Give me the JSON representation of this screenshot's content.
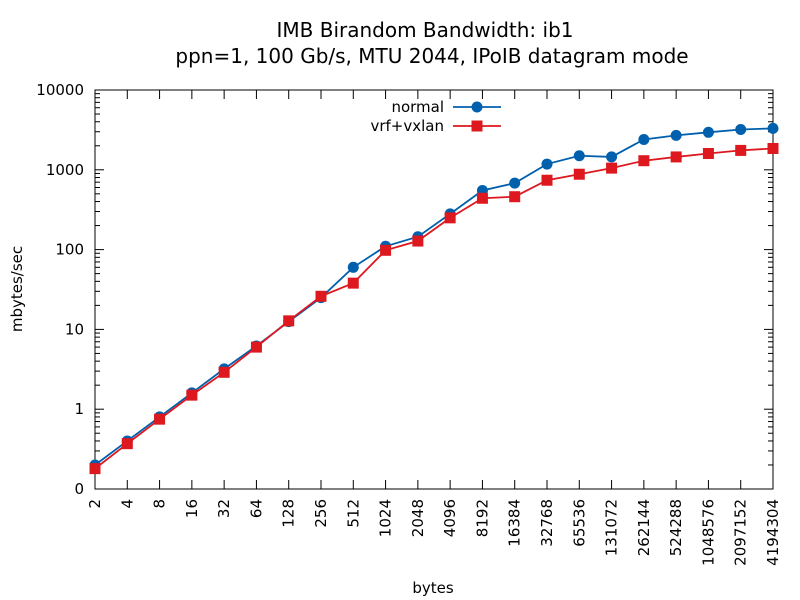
{
  "chart_data": {
    "type": "line",
    "title": "IMB Birandom Bandwidth: ib1",
    "subtitle": "ppn=1, 100 Gb/s, MTU 2044, IPoIB datagram mode",
    "xlabel": "bytes",
    "ylabel": "mbytes/sec",
    "x_scale": "log2",
    "y_scale": "log10",
    "xlim": [
      2,
      4194304
    ],
    "ylim": [
      0.1,
      10000
    ],
    "x_ticks": [
      2,
      4,
      8,
      16,
      32,
      64,
      128,
      256,
      512,
      1024,
      2048,
      4096,
      8192,
      16384,
      32768,
      65536,
      131072,
      262144,
      524288,
      1048576,
      2097152,
      4194304
    ],
    "y_ticks": [
      {
        "value": 0.1,
        "label": "0"
      },
      {
        "value": 1,
        "label": "1"
      },
      {
        "value": 10,
        "label": "10"
      },
      {
        "value": 100,
        "label": "100"
      },
      {
        "value": 1000,
        "label": "1000"
      },
      {
        "value": 10000,
        "label": "10000"
      }
    ],
    "grid": false,
    "legend_position": "top-center",
    "x": [
      2,
      4,
      8,
      16,
      32,
      64,
      128,
      256,
      512,
      1024,
      2048,
      4096,
      8192,
      16384,
      32768,
      65536,
      131072,
      262144,
      524288,
      1048576,
      2097152,
      4194304
    ],
    "series": [
      {
        "name": "normal",
        "color": "#0060ad",
        "marker": "circle",
        "values": [
          0.2,
          0.4,
          0.8,
          1.6,
          3.2,
          6.2,
          12.5,
          25,
          60,
          110,
          145,
          280,
          550,
          680,
          1180,
          1500,
          1450,
          2400,
          2700,
          2950,
          3200,
          3300
        ]
      },
      {
        "name": "vrf+vxlan",
        "color": "#dd181f",
        "marker": "square",
        "values": [
          0.18,
          0.37,
          0.75,
          1.5,
          2.9,
          6.0,
          12.8,
          26,
          38,
          98,
          128,
          250,
          440,
          460,
          740,
          880,
          1050,
          1300,
          1450,
          1600,
          1750,
          1850
        ]
      }
    ]
  }
}
